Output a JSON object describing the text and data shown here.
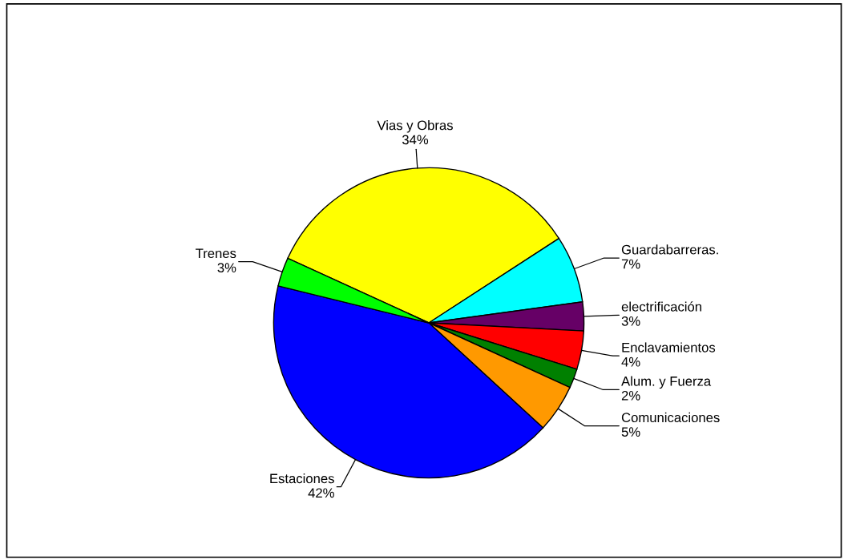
{
  "chart_data": {
    "type": "pie",
    "categories": [
      "Vias y Obras",
      "Guardabarreras.",
      "electrificación",
      "Enclavamientos",
      "Alum. y Fuerza",
      "Comunicaciones",
      "Estaciones",
      "Trenes"
    ],
    "values": [
      34,
      7,
      3,
      4,
      2,
      5,
      42,
      3
    ],
    "value_labels": [
      "34%",
      "7%",
      "3%",
      "4%",
      "2%",
      "5%",
      "42%",
      "3%"
    ],
    "colors": [
      "#ffff00",
      "#00ffff",
      "#660066",
      "#ff0000",
      "#008000",
      "#ff9900",
      "#0000ff",
      "#00ff00"
    ]
  }
}
